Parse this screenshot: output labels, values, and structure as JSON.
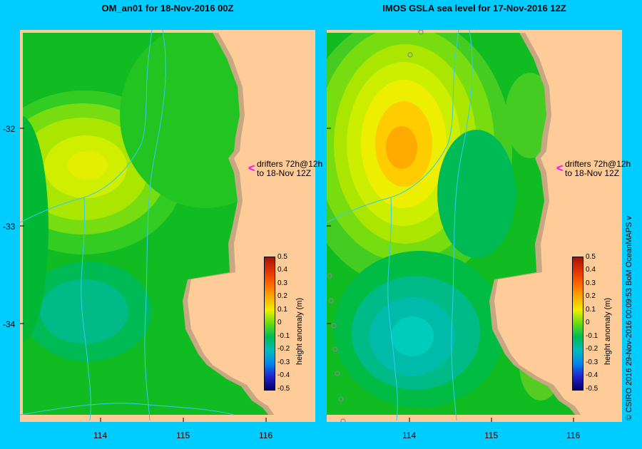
{
  "panels": [
    {
      "title": "OM_an01  for 18-Nov-2016 00Z"
    },
    {
      "title": "IMOS GSLA sea level  for 17-Nov-2016 12Z"
    }
  ],
  "drifter_note": {
    "line1": "drifters 72h@12h",
    "line2": "to 18-Nov 12Z",
    "marker_color": "#ff00ff"
  },
  "colorbar": {
    "title": "height anomaly (m)",
    "labels": [
      "0.5",
      "0.4",
      "0.3",
      "0.2",
      "0.1",
      "0",
      "-0.1",
      "-0.2",
      "-0.3",
      "-0.4",
      "-0.5"
    ]
  },
  "axes": {
    "lat_labels": [
      "-32",
      "-33",
      "-34"
    ],
    "lon_labels": [
      "114",
      "115",
      "116"
    ]
  },
  "credit": "© CSIRO 2016   29-Nov-2016 00:09:53 BoM OceanMAPS v",
  "colors": {
    "background": "#00ccff",
    "land": "#ffcc99",
    "shelf": "#c8a882",
    "current": "#33ccee"
  }
}
